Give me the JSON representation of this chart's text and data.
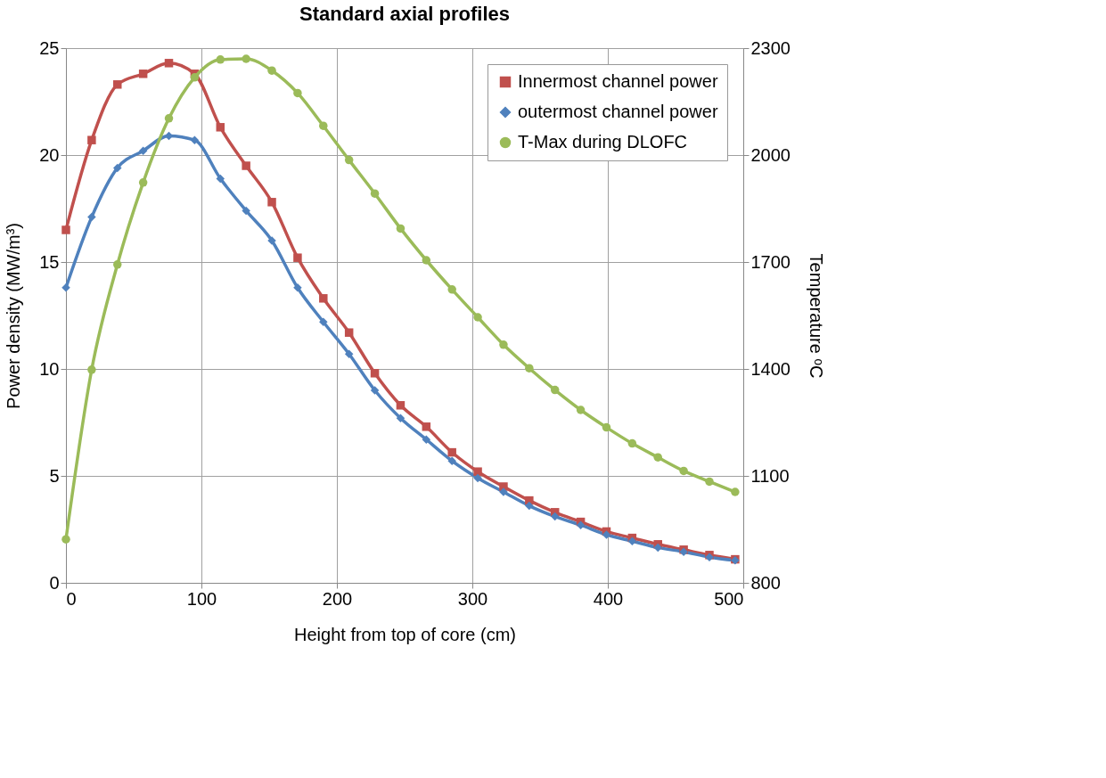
{
  "chart_data": {
    "type": "line",
    "title": "Standard axial profiles",
    "xlabel": "Height from top of core (cm)",
    "ylabel": "Power density (MW/m³)",
    "y2label": "Temperature ᵒC",
    "x": [
      0,
      19,
      38,
      57,
      76,
      95,
      114,
      133,
      152,
      171,
      190,
      209,
      228,
      247,
      266,
      285,
      304,
      323,
      342,
      361,
      380,
      399,
      418,
      437,
      456,
      475,
      494
    ],
    "series": [
      {
        "name": "Innermost channel power",
        "color": "#c0504d",
        "marker": "square",
        "values": [
          16.5,
          20.7,
          23.3,
          23.8,
          24.3,
          23.8,
          21.3,
          19.5,
          17.8,
          15.2,
          13.3,
          11.7,
          9.8,
          8.3,
          7.3,
          6.1,
          5.2,
          4.5,
          3.85,
          3.3,
          2.85,
          2.4,
          2.1,
          1.8,
          1.55,
          1.3,
          1.1
        ]
      },
      {
        "name": "outermost channel power",
        "color": "#4f81bd",
        "marker": "diamond",
        "values": [
          13.8,
          17.1,
          19.4,
          20.2,
          20.9,
          20.7,
          18.9,
          17.4,
          16.0,
          13.8,
          12.2,
          10.7,
          9.0,
          7.7,
          6.7,
          5.7,
          4.9,
          4.25,
          3.6,
          3.1,
          2.7,
          2.25,
          1.95,
          1.65,
          1.45,
          1.2,
          1.05
        ]
      },
      {
        "name": "T-Max during DLOFC",
        "color": "#9bbb59",
        "marker": "circle",
        "axis": "y2",
        "values": [
          922,
          1398,
          1693,
          1923,
          2103,
          2218,
          2268,
          2270,
          2237,
          2174,
          2082,
          1986,
          1892,
          1794,
          1705,
          1623,
          1545,
          1468,
          1402,
          1341,
          1285,
          1236,
          1191,
          1152,
          1114,
          1084,
          1055
        ]
      }
    ],
    "xlim": [
      0,
      500
    ],
    "xticks": [
      0,
      100,
      200,
      300,
      400,
      500
    ],
    "ylim": [
      0,
      25
    ],
    "yticks": [
      0,
      5,
      10,
      15,
      20,
      25
    ],
    "y2lim": [
      800,
      2300
    ],
    "y2ticks": [
      800,
      1100,
      1400,
      1700,
      2000,
      2300
    ],
    "grid": true,
    "legend": "top right"
  }
}
